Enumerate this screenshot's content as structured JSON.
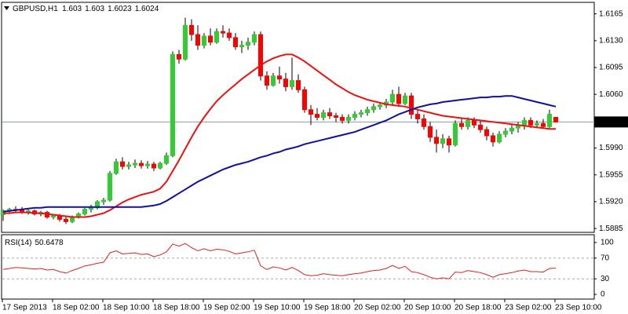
{
  "chart_data": {
    "type": "candlestick",
    "title": "GBPUSD,H1",
    "categories": [
      "17 Sep 2013",
      null,
      null,
      null,
      null,
      null,
      null,
      null,
      "18 Sep 02:00",
      null,
      null,
      null,
      null,
      null,
      null,
      null,
      "18 Sep 10:00",
      null,
      null,
      null,
      null,
      null,
      null,
      null,
      "18 Sep 18:00",
      null,
      null,
      null,
      null,
      null,
      null,
      null,
      "19 Sep 02:00",
      null,
      null,
      null,
      null,
      null,
      null,
      null,
      "19 Sep 10:00",
      null,
      null,
      null,
      null,
      null,
      null,
      null,
      "19 Sep 18:00",
      null,
      null,
      null,
      null,
      null,
      null,
      null,
      "20 Sep 02:00",
      null,
      null,
      null,
      null,
      null,
      null,
      null,
      "20 Sep 10:00",
      null,
      null,
      null,
      null,
      null,
      null,
      null,
      "20 Sep 18:00",
      null,
      null,
      null,
      null,
      null,
      null,
      null,
      "23 Sep 02:00",
      null,
      null,
      null,
      null,
      null,
      null,
      null,
      "23 Sep 10:00"
    ],
    "open": [
      1.5903,
      1.5908,
      1.591,
      1.5909,
      1.5906,
      1.5908,
      1.5904,
      1.5906,
      1.59,
      1.5902,
      1.5897,
      1.5894,
      1.59,
      1.5904,
      1.591,
      1.5912,
      1.592,
      1.5922,
      1.5957,
      1.5972,
      1.5966,
      1.5968,
      1.597,
      1.5967,
      1.5969,
      1.5964,
      1.597,
      1.598,
      1.6112,
      1.6106,
      1.615,
      1.6138,
      1.6124,
      1.6136,
      1.6128,
      1.6142,
      1.614,
      1.6134,
      1.6122,
      1.6124,
      1.6128,
      1.6138,
      1.6084,
      1.6072,
      1.6084,
      1.608,
      1.607,
      1.6078,
      1.6066,
      1.604,
      1.6034,
      1.603,
      1.6036,
      1.6032,
      1.603,
      1.6026,
      1.603,
      1.6034,
      1.6036,
      1.604,
      1.6044,
      1.6046,
      1.605,
      1.606,
      1.6048,
      1.6058,
      1.6034,
      1.6028,
      1.6018,
      1.6004,
      1.5996,
      1.6002,
      1.5994,
      1.6022,
      1.6018,
      1.6026,
      1.602,
      1.6014,
      1.6006,
      1.5998,
      1.6008,
      1.6012,
      1.6016,
      1.602,
      1.6026,
      1.602,
      1.6022,
      1.6018,
      1.603
    ],
    "high": [
      1.591,
      1.5912,
      1.5914,
      1.5913,
      1.591,
      1.591,
      1.5908,
      1.5908,
      1.5904,
      1.5904,
      1.59,
      1.5902,
      1.5906,
      1.5912,
      1.5916,
      1.5922,
      1.5925,
      1.596,
      1.5976,
      1.5978,
      1.5972,
      1.5975,
      1.5974,
      1.5973,
      1.5972,
      1.5972,
      1.5984,
      1.6116,
      1.6118,
      1.616,
      1.6158,
      1.615,
      1.614,
      1.6146,
      1.6146,
      1.615,
      1.6146,
      1.614,
      1.613,
      1.6134,
      1.6142,
      1.6142,
      1.609,
      1.6088,
      1.6096,
      1.6088,
      1.6108,
      1.6086,
      1.607,
      1.6046,
      1.6042,
      1.604,
      1.6042,
      1.6036,
      1.6034,
      1.6034,
      1.6038,
      1.604,
      1.6044,
      1.6048,
      1.605,
      1.6054,
      1.6066,
      1.607,
      1.6062,
      1.6062,
      1.604,
      1.6034,
      1.6024,
      1.6014,
      1.6008,
      1.6006,
      1.6026,
      1.603,
      1.603,
      1.603,
      1.6026,
      1.6018,
      1.601,
      1.6012,
      1.6016,
      1.602,
      1.6024,
      1.603,
      1.603,
      1.6026,
      1.6028,
      1.604,
      1.603
    ],
    "low": [
      1.5895,
      1.5904,
      1.5906,
      1.5904,
      1.5903,
      1.5902,
      1.5901,
      1.5898,
      1.5897,
      1.5894,
      1.5891,
      1.5892,
      1.5898,
      1.5902,
      1.5906,
      1.591,
      1.5916,
      1.592,
      1.5955,
      1.5962,
      1.5962,
      1.5964,
      1.5963,
      1.5963,
      1.596,
      1.5962,
      1.5968,
      1.5978,
      1.61,
      1.6104,
      1.613,
      1.6118,
      1.612,
      1.6124,
      1.6126,
      1.6134,
      1.613,
      1.6118,
      1.6114,
      1.6118,
      1.6124,
      1.6078,
      1.6066,
      1.607,
      1.6074,
      1.6064,
      1.6066,
      1.6062,
      1.6036,
      1.602,
      1.6026,
      1.6026,
      1.6028,
      1.6024,
      1.6022,
      1.6022,
      1.6026,
      1.603,
      1.6032,
      1.6036,
      1.604,
      1.6042,
      1.6046,
      1.6044,
      1.6046,
      1.6028,
      1.6022,
      1.6014,
      1.5998,
      1.5984,
      1.599,
      1.5984,
      1.5992,
      1.6014,
      1.6014,
      1.6016,
      1.601,
      1.6,
      1.5992,
      1.5996,
      1.6004,
      1.6008,
      1.601,
      1.6014,
      1.6016,
      1.6016,
      1.6016,
      1.6016,
      1.6023
    ],
    "close": [
      1.5908,
      1.591,
      1.5909,
      1.5906,
      1.5908,
      1.5904,
      1.5906,
      1.59,
      1.5902,
      1.5897,
      1.5894,
      1.59,
      1.5904,
      1.591,
      1.5912,
      1.592,
      1.5922,
      1.5957,
      1.5972,
      1.5966,
      1.5968,
      1.597,
      1.5967,
      1.5969,
      1.5964,
      1.597,
      1.598,
      1.6112,
      1.6106,
      1.615,
      1.6138,
      1.6124,
      1.6136,
      1.6128,
      1.6142,
      1.614,
      1.6134,
      1.6122,
      1.6124,
      1.6128,
      1.6138,
      1.6084,
      1.6072,
      1.6084,
      1.608,
      1.607,
      1.6078,
      1.6066,
      1.604,
      1.6034,
      1.603,
      1.6036,
      1.6032,
      1.603,
      1.6026,
      1.603,
      1.6034,
      1.6036,
      1.604,
      1.6044,
      1.6046,
      1.605,
      1.606,
      1.6048,
      1.6058,
      1.6034,
      1.6028,
      1.6018,
      1.6004,
      1.5996,
      1.6002,
      1.5994,
      1.6022,
      1.6018,
      1.6026,
      1.602,
      1.6014,
      1.6006,
      1.5998,
      1.6008,
      1.6012,
      1.6016,
      1.602,
      1.6026,
      1.602,
      1.6022,
      1.6018,
      1.6034,
      1.6024
    ],
    "up_color": "#32cd32",
    "down_color": "#ff0000",
    "series": [
      {
        "color": "#ee1111",
        "values": [
          1.5905,
          1.5905,
          1.5906,
          1.5906,
          1.5906,
          1.5905,
          1.5905,
          1.5904,
          1.5903,
          1.5902,
          1.5901,
          1.59,
          1.59,
          1.59,
          1.5901,
          1.5903,
          1.5905,
          1.5909,
          1.5914,
          1.5919,
          1.5923,
          1.5926,
          1.5929,
          1.5931,
          1.5933,
          1.5937,
          1.5946,
          1.596,
          1.5974,
          1.5989,
          1.6004,
          1.6018,
          1.603,
          1.6041,
          1.6051,
          1.6059,
          1.6066,
          1.6073,
          1.608,
          1.6086,
          1.6092,
          1.6098,
          1.6103,
          1.6107,
          1.611,
          1.6112,
          1.6112,
          1.6108,
          1.6103,
          1.6097,
          1.6091,
          1.6085,
          1.6079,
          1.6073,
          1.6068,
          1.6063,
          1.6059,
          1.6056,
          1.6053,
          1.6051,
          1.6049,
          1.6047,
          1.6046,
          1.6045,
          1.6044,
          1.6042,
          1.604,
          1.6038,
          1.6036,
          1.6034,
          1.6032,
          1.6031,
          1.603,
          1.6029,
          1.6028,
          1.6027,
          1.6026,
          1.6025,
          1.6024,
          1.6023,
          1.6022,
          1.6021,
          1.602,
          1.6019,
          1.6018,
          1.6017,
          1.6016,
          1.6015,
          1.6015
        ]
      },
      {
        "color": "#1010a0",
        "values": [
          1.5907,
          1.5908,
          1.5909,
          1.591,
          1.5911,
          1.5912,
          1.5912,
          1.5913,
          1.5913,
          1.5913,
          1.5913,
          1.5913,
          1.5913,
          1.5913,
          1.5913,
          1.5913,
          1.5913,
          1.5913,
          1.5913,
          1.5913,
          1.5913,
          1.5913,
          1.5913,
          1.5914,
          1.5915,
          1.5917,
          1.5921,
          1.5926,
          1.5931,
          1.5936,
          1.5941,
          1.5946,
          1.595,
          1.5954,
          1.5958,
          1.5962,
          1.5965,
          1.5968,
          1.597,
          1.5972,
          1.5975,
          1.5978,
          1.598,
          1.5983,
          1.5985,
          1.5988,
          1.599,
          1.5992,
          1.5995,
          1.5997,
          1.5999,
          1.6001,
          1.6003,
          1.6005,
          1.6007,
          1.6009,
          1.6011,
          1.6014,
          1.6017,
          1.602,
          1.6023,
          1.6026,
          1.603,
          1.6034,
          1.6037,
          1.604,
          1.6043,
          1.6045,
          1.6047,
          1.6048,
          1.605,
          1.6051,
          1.6052,
          1.6053,
          1.6054,
          1.6055,
          1.6056,
          1.6056,
          1.6057,
          1.6057,
          1.6058,
          1.6058,
          1.6056,
          1.6054,
          1.6052,
          1.605,
          1.6048,
          1.6046,
          1.6044
        ]
      }
    ],
    "ylim": [
      1.588,
      1.618
    ],
    "yticks": [
      {
        "value": 1.6165,
        "label": "1.6165"
      },
      {
        "value": 1.613,
        "label": "1.6130"
      },
      {
        "value": 1.6095,
        "label": "1.6095"
      },
      {
        "value": 1.606,
        "label": "1.6060"
      },
      {
        "value": 1.599,
        "label": "1.5990"
      },
      {
        "value": 1.5955,
        "label": "1.5955"
      },
      {
        "value": 1.592,
        "label": "1.5920"
      },
      {
        "value": 1.5885,
        "label": "1.5885"
      }
    ],
    "rsi": {
      "label": "RSI(14)",
      "color": "#dd2222",
      "values": [
        48,
        50,
        52,
        51,
        50,
        49,
        50,
        47,
        48,
        44,
        41,
        46,
        50,
        55,
        57,
        60,
        62,
        80,
        84,
        78,
        79,
        80,
        77,
        78,
        73,
        76,
        82,
        97,
        93,
        98,
        90,
        84,
        88,
        84,
        87,
        86,
        83,
        78,
        80,
        82,
        85,
        55,
        48,
        53,
        51,
        47,
        52,
        46,
        38,
        36,
        37,
        40,
        38,
        37,
        36,
        38,
        40,
        41,
        44,
        46,
        47,
        50,
        56,
        50,
        54,
        44,
        42,
        38,
        33,
        30,
        32,
        30,
        43,
        42,
        46,
        44,
        42,
        38,
        33,
        38,
        40,
        42,
        45,
        47,
        44,
        44,
        43,
        50,
        50.6478
      ],
      "ylim": [
        -9,
        115
      ],
      "yticks": [
        100,
        70,
        30,
        0
      ],
      "levels": [
        70,
        30
      ]
    }
  }
}
